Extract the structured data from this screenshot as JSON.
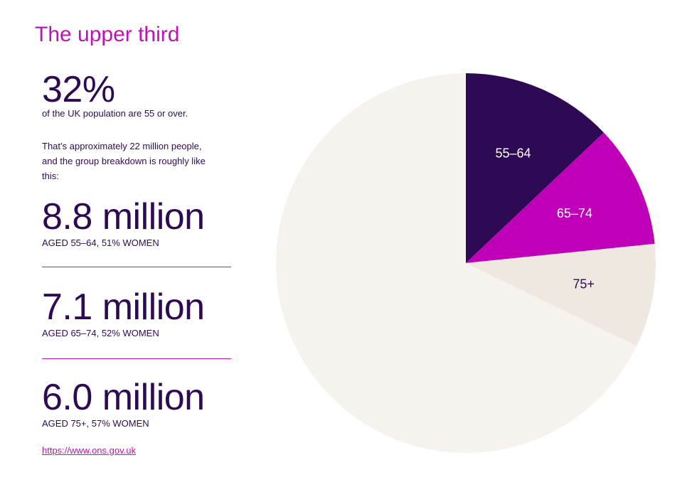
{
  "title": "The upper third",
  "headline": {
    "value": "32%",
    "caption": "of the UK population are 55 or over."
  },
  "intro": "That’s approximately 22 million people, and the group breakdown is roughly like this:",
  "groups": [
    {
      "value": "8.8 million",
      "caption": "AGED 55–64, 51% WOMEN"
    },
    {
      "value": "7.1 million",
      "caption": "AGED 65–74, 52% WOMEN"
    },
    {
      "value": "6.0 million",
      "caption": "AGED 75+, 57% WOMEN"
    }
  ],
  "source_link": "https://www.ons.gov.uk",
  "chart_data": {
    "type": "pie",
    "unit": "million people",
    "slices": [
      {
        "label": "55–64",
        "value": 8.8,
        "color": "#2e0a55",
        "label_color": "#ffffff"
      },
      {
        "label": "65–74",
        "value": 7.1,
        "color": "#c000b8",
        "label_color": "#ffffff"
      },
      {
        "label": "75+",
        "value": 6.0,
        "color": "#efe8e0",
        "label_color": "#2e0a55"
      },
      {
        "label": "",
        "value": 46.1,
        "color": "#f6f3ee",
        "label_color": "#2e0a55"
      }
    ],
    "start_angle": "12 o'clock, clockwise"
  }
}
